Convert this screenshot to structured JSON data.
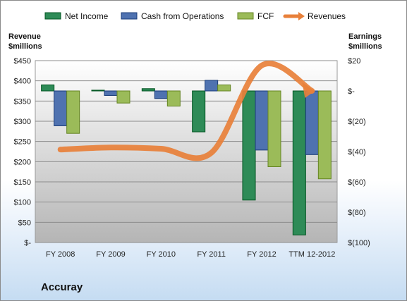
{
  "chart_data": {
    "type": "bar",
    "company": "Accuray",
    "categories": [
      "FY 2008",
      "FY 2009",
      "FY 2010",
      "FY 2011",
      "FY 2012",
      "TTM 12-2012"
    ],
    "left_axis": {
      "title_lines": [
        "Revenue",
        "$millions"
      ],
      "ticks": [
        "$450",
        "$400",
        "$350",
        "$300",
        "$250",
        "$200",
        "$150",
        "$100",
        "$50",
        "$-"
      ],
      "range": [
        0,
        450
      ]
    },
    "right_axis": {
      "title_lines": [
        "Earnings",
        "$millions"
      ],
      "ticks": [
        "$20",
        "$-",
        "$(20)",
        "$(40)",
        "$(60)",
        "$(80)",
        "$(100)"
      ],
      "range": [
        -100,
        20
      ]
    },
    "series": [
      {
        "name": "Net Income",
        "axis": "right",
        "color": "#2e8b57",
        "values": [
          4,
          0.5,
          1.5,
          -27,
          -72,
          -95
        ]
      },
      {
        "name": "Cash from Operations",
        "axis": "right",
        "color": "#4f72b0",
        "values": [
          -23,
          -3,
          -5,
          7,
          -39,
          -42
        ]
      },
      {
        "name": "FCF",
        "axis": "right",
        "color": "#9bbb59",
        "values": [
          -28,
          -8,
          -10,
          4,
          -50,
          -58
        ]
      }
    ],
    "line_series": {
      "name": "Revenues",
      "axis": "left",
      "color": "#e8803a",
      "values": [
        230,
        235,
        232,
        222,
        438,
        375
      ]
    },
    "legend_position": "top",
    "grid": true
  }
}
